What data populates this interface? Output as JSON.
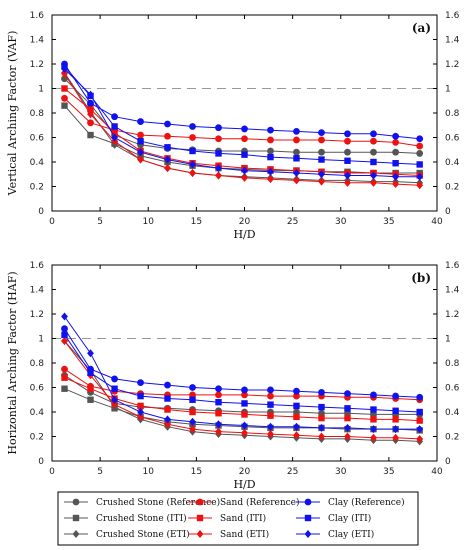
{
  "chart_data": [
    {
      "type": "line",
      "panel_label": "(a)",
      "xlabel": "H/D",
      "ylabel": "Vertical Arching Factor (VAF)",
      "xlim": [
        0,
        40
      ],
      "ylim": [
        0,
        1.6
      ],
      "xticks": [
        0,
        5,
        10,
        15,
        20,
        25,
        30,
        35,
        40
      ],
      "yticks": [
        0,
        0.2,
        0.4,
        0.6,
        0.8,
        1,
        1.2,
        1.4,
        1.6
      ],
      "reference_line_y": 1,
      "grid": false,
      "x": [
        1.3,
        4,
        6.5,
        9.2,
        12,
        14.6,
        17.3,
        20,
        22.7,
        25.4,
        28,
        30.7,
        33.4,
        35.7,
        38.2
      ],
      "series": [
        {
          "name": "Crushed Stone (Reference)",
          "color": "#555555",
          "marker": "circle",
          "values": [
            1.08,
            0.87,
            0.62,
            0.54,
            0.51,
            0.5,
            0.49,
            0.49,
            0.49,
            0.48,
            0.48,
            0.48,
            0.48,
            0.48,
            0.47
          ]
        },
        {
          "name": "Crushed Stone (ITI)",
          "color": "#555555",
          "marker": "square",
          "values": [
            0.86,
            0.62,
            0.55,
            0.45,
            0.4,
            0.37,
            0.35,
            0.34,
            0.33,
            0.33,
            0.32,
            0.32,
            0.31,
            0.31,
            0.31
          ]
        },
        {
          "name": "Crushed Stone (ETI)",
          "color": "#555555",
          "marker": "diamond",
          "values": [
            1.13,
            0.81,
            0.54,
            0.42,
            0.35,
            0.31,
            0.29,
            0.28,
            0.27,
            0.26,
            0.25,
            0.25,
            0.24,
            0.24,
            0.23
          ]
        },
        {
          "name": "Sand (Reference)",
          "color": "#ee1111",
          "marker": "circle",
          "values": [
            0.92,
            0.72,
            0.66,
            0.62,
            0.61,
            0.6,
            0.59,
            0.59,
            0.58,
            0.58,
            0.58,
            0.57,
            0.57,
            0.56,
            0.53
          ]
        },
        {
          "name": "Sand (ITI)",
          "color": "#ee1111",
          "marker": "square",
          "values": [
            1.0,
            0.83,
            0.64,
            0.49,
            0.43,
            0.39,
            0.37,
            0.35,
            0.34,
            0.33,
            0.32,
            0.31,
            0.31,
            0.3,
            0.29
          ]
        },
        {
          "name": "Sand (ETI)",
          "color": "#ee1111",
          "marker": "diamond",
          "values": [
            1.12,
            0.79,
            0.57,
            0.42,
            0.35,
            0.31,
            0.29,
            0.27,
            0.26,
            0.25,
            0.24,
            0.23,
            0.23,
            0.22,
            0.21
          ]
        },
        {
          "name": "Clay (Reference)",
          "color": "#1111ee",
          "marker": "circle",
          "values": [
            1.2,
            0.88,
            0.77,
            0.73,
            0.71,
            0.69,
            0.68,
            0.67,
            0.66,
            0.65,
            0.64,
            0.63,
            0.63,
            0.61,
            0.59
          ]
        },
        {
          "name": "Clay (ITI)",
          "color": "#1111ee",
          "marker": "square",
          "values": [
            1.18,
            0.94,
            0.69,
            0.57,
            0.52,
            0.49,
            0.47,
            0.46,
            0.44,
            0.43,
            0.42,
            0.41,
            0.4,
            0.39,
            0.38
          ]
        },
        {
          "name": "Clay (ETI)",
          "color": "#1111ee",
          "marker": "diamond",
          "values": [
            1.16,
            0.95,
            0.6,
            0.48,
            0.42,
            0.38,
            0.35,
            0.33,
            0.32,
            0.31,
            0.3,
            0.29,
            0.29,
            0.28,
            0.28
          ]
        }
      ]
    },
    {
      "type": "line",
      "panel_label": "(b)",
      "xlabel": "H/D",
      "ylabel": "Horizontal Arching Factor (HAF)",
      "xlim": [
        0,
        40
      ],
      "ylim": [
        0,
        1.6
      ],
      "xticks": [
        0,
        5,
        10,
        15,
        20,
        25,
        30,
        35,
        40
      ],
      "yticks": [
        0,
        0.2,
        0.4,
        0.6,
        0.8,
        1,
        1.2,
        1.4,
        1.6
      ],
      "reference_line_y": 1,
      "grid": false,
      "x": [
        1.3,
        4,
        6.5,
        9.2,
        12,
        14.6,
        17.3,
        20,
        22.7,
        25.4,
        28,
        30.7,
        33.4,
        35.7,
        38.2
      ],
      "series": [
        {
          "name": "Crushed Stone (Reference)",
          "color": "#555555",
          "marker": "circle",
          "values": [
            0.7,
            0.56,
            0.47,
            0.44,
            0.43,
            0.42,
            0.41,
            0.4,
            0.4,
            0.4,
            0.39,
            0.39,
            0.38,
            0.38,
            0.38
          ]
        },
        {
          "name": "Crushed Stone (ITI)",
          "color": "#555555",
          "marker": "square",
          "values": [
            0.59,
            0.5,
            0.43,
            0.36,
            0.32,
            0.3,
            0.29,
            0.28,
            0.27,
            0.27,
            0.27,
            0.26,
            0.26,
            0.26,
            0.25
          ]
        },
        {
          "name": "Crushed Stone (ETI)",
          "color": "#555555",
          "marker": "diamond",
          "values": [
            0.98,
            0.74,
            0.44,
            0.34,
            0.28,
            0.24,
            0.22,
            0.21,
            0.2,
            0.19,
            0.18,
            0.18,
            0.17,
            0.17,
            0.16
          ]
        },
        {
          "name": "Sand (Reference)",
          "color": "#ee1111",
          "marker": "circle",
          "values": [
            0.75,
            0.61,
            0.57,
            0.55,
            0.54,
            0.54,
            0.54,
            0.54,
            0.53,
            0.53,
            0.53,
            0.52,
            0.52,
            0.51,
            0.5
          ]
        },
        {
          "name": "Sand (ITI)",
          "color": "#ee1111",
          "marker": "square",
          "values": [
            0.68,
            0.59,
            0.51,
            0.45,
            0.42,
            0.4,
            0.39,
            0.38,
            0.37,
            0.36,
            0.35,
            0.35,
            0.34,
            0.34,
            0.33
          ]
        },
        {
          "name": "Sand (ETI)",
          "color": "#ee1111",
          "marker": "diamond",
          "values": [
            0.98,
            0.7,
            0.46,
            0.36,
            0.3,
            0.26,
            0.24,
            0.23,
            0.22,
            0.21,
            0.2,
            0.2,
            0.19,
            0.19,
            0.18
          ]
        },
        {
          "name": "Clay (Reference)",
          "color": "#1111ee",
          "marker": "circle",
          "values": [
            1.08,
            0.75,
            0.67,
            0.64,
            0.62,
            0.6,
            0.59,
            0.58,
            0.58,
            0.57,
            0.56,
            0.55,
            0.54,
            0.53,
            0.52
          ]
        },
        {
          "name": "Clay (ITI)",
          "color": "#1111ee",
          "marker": "square",
          "values": [
            1.03,
            0.72,
            0.59,
            0.53,
            0.51,
            0.5,
            0.48,
            0.47,
            0.46,
            0.45,
            0.44,
            0.43,
            0.42,
            0.41,
            0.4
          ]
        },
        {
          "name": "Clay (ETI)",
          "color": "#1111ee",
          "marker": "diamond",
          "values": [
            1.18,
            0.88,
            0.5,
            0.4,
            0.34,
            0.32,
            0.3,
            0.29,
            0.28,
            0.28,
            0.27,
            0.27,
            0.26,
            0.26,
            0.26
          ]
        }
      ]
    }
  ],
  "legend": {
    "columns": [
      [
        "Crushed Stone (Reference)",
        "Crushed Stone (ITI)",
        "Crushed Stone (ETI)"
      ],
      [
        "Sand (Reference)",
        "Sand (ITI)",
        "Sand (ETI)"
      ],
      [
        "Clay (Reference)",
        "Clay (ITI)",
        "Clay (ETI)"
      ]
    ],
    "placement": "bottom"
  }
}
